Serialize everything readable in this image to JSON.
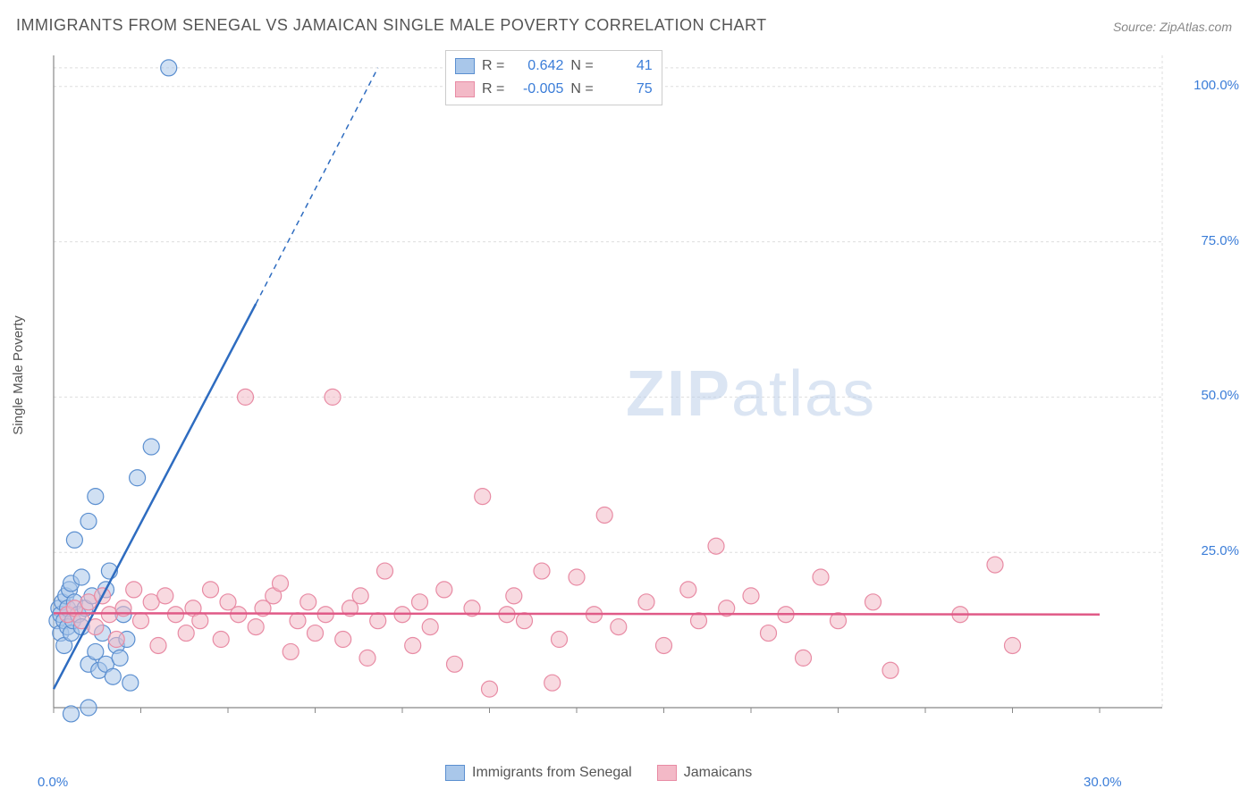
{
  "title": "IMMIGRANTS FROM SENEGAL VS JAMAICAN SINGLE MALE POVERTY CORRELATION CHART",
  "source_prefix": "Source: ",
  "source_name": "ZipAtlas.com",
  "y_axis_label": "Single Male Poverty",
  "watermark_bold": "ZIP",
  "watermark_light": "atlas",
  "chart": {
    "type": "scatter",
    "xlim": [
      0,
      30
    ],
    "ylim": [
      0,
      105
    ],
    "x_ticks": [
      0,
      2.5,
      5,
      7.5,
      10,
      12.5,
      15,
      17.5,
      20,
      22.5,
      25,
      27.5,
      30
    ],
    "x_tick_labels": {
      "0": "0.0%",
      "30": "30.0%"
    },
    "y_ticks": [
      25,
      50,
      75,
      100
    ],
    "y_tick_labels": {
      "25": "25.0%",
      "50": "50.0%",
      "75": "75.0%",
      "100": "100.0%"
    },
    "grid_color": "#dddddd",
    "axis_color": "#888888",
    "background_color": "#ffffff",
    "marker_radius": 9,
    "marker_opacity": 0.55,
    "line_width": 2.5,
    "series": [
      {
        "name": "Immigrants from Senegal",
        "color_fill": "#a9c7ea",
        "color_stroke": "#5b8fd0",
        "line_color": "#2e6cc0",
        "r": 0.642,
        "n": 41,
        "trend": {
          "x1": 0,
          "y1": 3,
          "x2": 5.8,
          "y2": 65,
          "x2_ext": 9.3,
          "y2_ext": 103
        },
        "points": [
          [
            0.1,
            14
          ],
          [
            0.15,
            16
          ],
          [
            0.2,
            12
          ],
          [
            0.2,
            15
          ],
          [
            0.25,
            17
          ],
          [
            0.3,
            10
          ],
          [
            0.3,
            14
          ],
          [
            0.35,
            18
          ],
          [
            0.4,
            13
          ],
          [
            0.4,
            16
          ],
          [
            0.45,
            19
          ],
          [
            0.5,
            12
          ],
          [
            0.5,
            20
          ],
          [
            0.55,
            14
          ],
          [
            0.6,
            17
          ],
          [
            0.6,
            27
          ],
          [
            0.7,
            15
          ],
          [
            0.8,
            21
          ],
          [
            0.8,
            13
          ],
          [
            0.9,
            16
          ],
          [
            1.0,
            30
          ],
          [
            1.0,
            7
          ],
          [
            1.1,
            18
          ],
          [
            1.2,
            34
          ],
          [
            1.2,
            9
          ],
          [
            1.3,
            6
          ],
          [
            1.4,
            12
          ],
          [
            1.5,
            7
          ],
          [
            1.5,
            19
          ],
          [
            1.6,
            22
          ],
          [
            1.7,
            5
          ],
          [
            1.8,
            10
          ],
          [
            1.9,
            8
          ],
          [
            2.0,
            15
          ],
          [
            2.1,
            11
          ],
          [
            2.2,
            4
          ],
          [
            2.4,
            37
          ],
          [
            0.5,
            -1
          ],
          [
            1.0,
            0
          ],
          [
            2.8,
            42
          ],
          [
            3.3,
            103
          ]
        ]
      },
      {
        "name": "Jamaicans",
        "color_fill": "#f3b9c7",
        "color_stroke": "#e88ba4",
        "line_color": "#e05a87",
        "r": -0.005,
        "n": 75,
        "trend": {
          "x1": 0,
          "y1": 15.2,
          "x2": 30,
          "y2": 15.0
        },
        "points": [
          [
            0.4,
            15
          ],
          [
            0.6,
            16
          ],
          [
            0.8,
            14
          ],
          [
            1.0,
            17
          ],
          [
            1.2,
            13
          ],
          [
            1.4,
            18
          ],
          [
            1.6,
            15
          ],
          [
            1.8,
            11
          ],
          [
            2.0,
            16
          ],
          [
            2.3,
            19
          ],
          [
            2.5,
            14
          ],
          [
            2.8,
            17
          ],
          [
            3.0,
            10
          ],
          [
            3.2,
            18
          ],
          [
            3.5,
            15
          ],
          [
            3.8,
            12
          ],
          [
            4.0,
            16
          ],
          [
            4.2,
            14
          ],
          [
            4.5,
            19
          ],
          [
            4.8,
            11
          ],
          [
            5.0,
            17
          ],
          [
            5.3,
            15
          ],
          [
            5.5,
            50
          ],
          [
            5.8,
            13
          ],
          [
            6.0,
            16
          ],
          [
            6.3,
            18
          ],
          [
            6.5,
            20
          ],
          [
            6.8,
            9
          ],
          [
            7.0,
            14
          ],
          [
            7.3,
            17
          ],
          [
            7.5,
            12
          ],
          [
            7.8,
            15
          ],
          [
            8.0,
            50
          ],
          [
            8.3,
            11
          ],
          [
            8.5,
            16
          ],
          [
            8.8,
            18
          ],
          [
            9.0,
            8
          ],
          [
            9.3,
            14
          ],
          [
            9.5,
            22
          ],
          [
            10.0,
            15
          ],
          [
            10.3,
            10
          ],
          [
            10.5,
            17
          ],
          [
            10.8,
            13
          ],
          [
            11.2,
            19
          ],
          [
            11.5,
            7
          ],
          [
            12.0,
            16
          ],
          [
            12.3,
            34
          ],
          [
            12.5,
            3
          ],
          [
            13.0,
            15
          ],
          [
            13.2,
            18
          ],
          [
            13.5,
            14
          ],
          [
            14.0,
            22
          ],
          [
            14.3,
            4
          ],
          [
            14.5,
            11
          ],
          [
            15.0,
            21
          ],
          [
            15.5,
            15
          ],
          [
            15.8,
            31
          ],
          [
            16.2,
            13
          ],
          [
            17.0,
            17
          ],
          [
            17.5,
            10
          ],
          [
            18.2,
            19
          ],
          [
            18.5,
            14
          ],
          [
            19.0,
            26
          ],
          [
            19.3,
            16
          ],
          [
            20.0,
            18
          ],
          [
            20.5,
            12
          ],
          [
            21.0,
            15
          ],
          [
            21.5,
            8
          ],
          [
            22.0,
            21
          ],
          [
            22.5,
            14
          ],
          [
            23.5,
            17
          ],
          [
            24.0,
            6
          ],
          [
            26.0,
            15
          ],
          [
            27.0,
            23
          ],
          [
            27.5,
            10
          ]
        ]
      }
    ]
  },
  "legend_top": {
    "r_label": "R =",
    "n_label": "N ="
  },
  "colors": {
    "title": "#555555",
    "source": "#888888",
    "tick": "#3b7dd8"
  }
}
